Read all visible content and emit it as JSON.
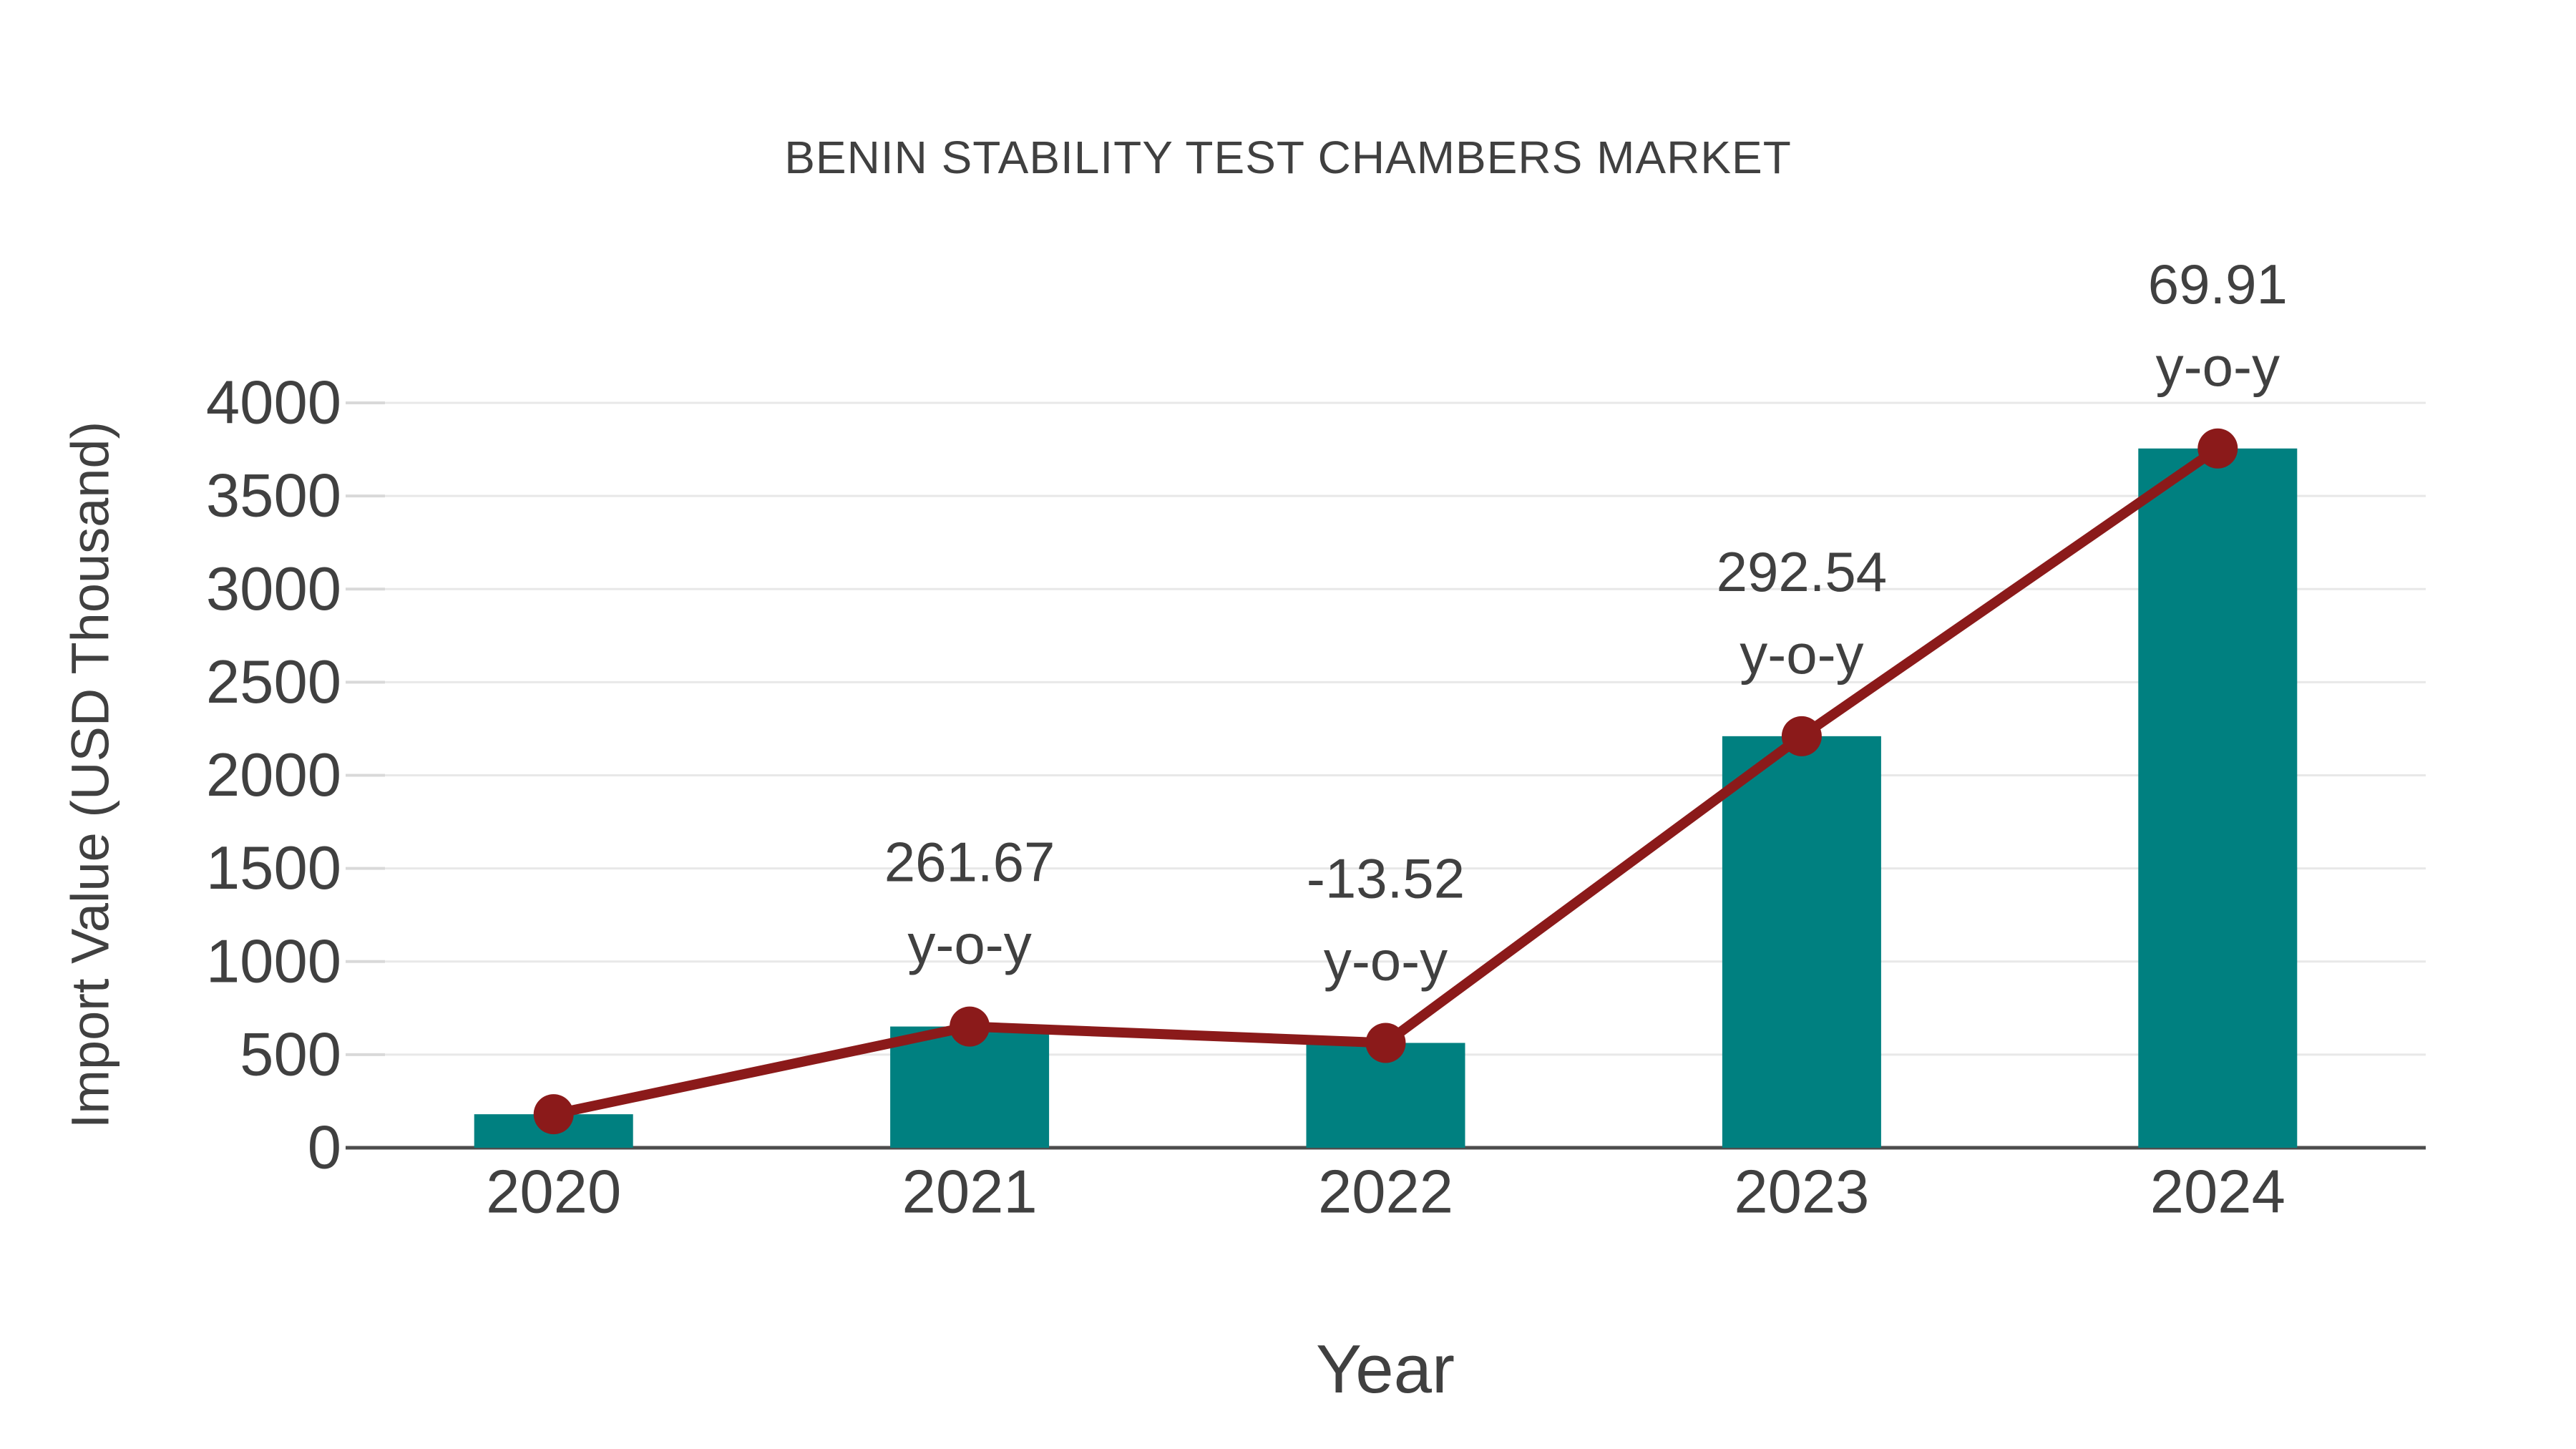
{
  "page": {
    "background": "#ffffff"
  },
  "chart": {
    "title": "BENIN STABILITY TEST CHAMBERS MARKET",
    "xlabel": "Year",
    "ylabel": "Import Value (USD Thousand)"
  },
  "colors": {
    "bar": "#008080",
    "line": "#8b1a1a",
    "text": "#404040",
    "grid": "#e8e8e8",
    "tick": "#d9d9d9",
    "axis": "#4d4d4d",
    "background": "#ffffff"
  },
  "chart_data": {
    "type": "bar",
    "title": "BENIN STABILITY TEST CHAMBERS MARKET",
    "xlabel": "Year",
    "ylabel": "Import Value (USD Thousand)",
    "categories": [
      "2020",
      "2021",
      "2022",
      "2023",
      "2024"
    ],
    "series": [
      {
        "name": "Import Value (USD Thousand)",
        "type": "bar",
        "color": "#008080",
        "values": [
          180,
          651,
          563,
          2210,
          3755
        ]
      },
      {
        "name": "y-o-y trend line",
        "type": "line",
        "color": "#8b1a1a",
        "values": [
          180,
          651,
          563,
          2210,
          3755
        ]
      }
    ],
    "point_labels": [
      "",
      "261.67",
      "-13.52",
      "292.54",
      "69.91"
    ],
    "point_label_suffix": "y-o-y",
    "ylim": [
      0,
      4000
    ],
    "yticks": [
      0,
      500,
      1000,
      1500,
      2000,
      2500,
      3000,
      3500,
      4000
    ],
    "grid": true,
    "legend": false
  }
}
